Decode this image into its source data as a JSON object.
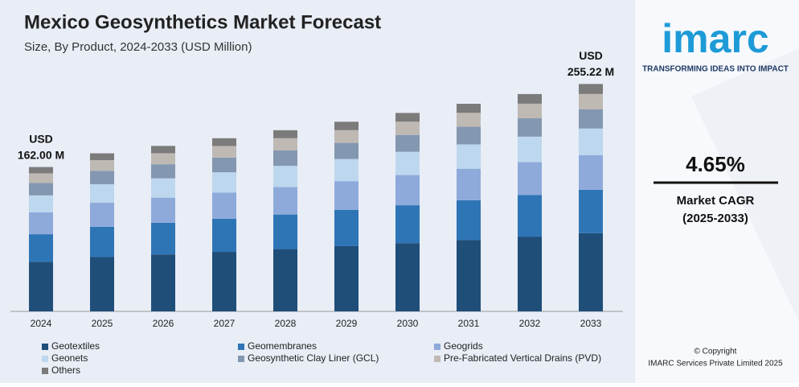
{
  "chart_data": {
    "type": "stacked_bar",
    "title": "Mexico Geosynthetics Market Forecast",
    "subtitle": "Size, By Product, 2024-2033 (USD Million)",
    "categories": [
      "2024",
      "2025",
      "2026",
      "2027",
      "2028",
      "2029",
      "2030",
      "2031",
      "2032",
      "2033"
    ],
    "series": [
      {
        "name": "Geotextiles",
        "color": "#1f4e79",
        "values": [
          55.7,
          61.0,
          63.9,
          66.8,
          69.9,
          73.2,
          76.6,
          80.2,
          83.9,
          87.8
        ]
      },
      {
        "name": "Geomembranes",
        "color": "#2e75b6",
        "values": [
          30.9,
          33.9,
          35.5,
          37.1,
          38.8,
          40.6,
          42.5,
          44.5,
          46.6,
          48.7
        ]
      },
      {
        "name": "Geogrids",
        "color": "#8eaadb",
        "values": [
          24.6,
          27.0,
          28.2,
          29.5,
          30.9,
          32.3,
          33.9,
          35.4,
          37.1,
          38.8
        ]
      },
      {
        "name": "Geonets",
        "color": "#bdd7ee",
        "values": [
          19.0,
          20.8,
          21.7,
          22.7,
          23.8,
          24.9,
          26.1,
          27.3,
          28.5,
          29.9
        ]
      },
      {
        "name": "Geosynthetic Clay Liner (GCL)",
        "color": "#8497b0",
        "values": [
          13.8,
          15.1,
          15.8,
          16.5,
          17.3,
          18.1,
          18.9,
          19.8,
          20.7,
          21.7
        ]
      },
      {
        "name": "Pre-Fabricated Vertical Drains (PVD)",
        "color": "#bfb9b4",
        "values": [
          10.9,
          11.9,
          12.4,
          13.0,
          13.6,
          14.3,
          14.9,
          15.6,
          16.3,
          17.1
        ]
      },
      {
        "name": "Others",
        "color": "#7b7b7b",
        "values": [
          7.1,
          7.7,
          8.2,
          8.7,
          9.0,
          9.4,
          9.8,
          10.2,
          10.8,
          11.22
        ]
      }
    ],
    "ylim": [
      0,
      270
    ],
    "start_label": [
      "USD",
      "162.00 M"
    ],
    "end_label": [
      "USD",
      "255.22 M"
    ]
  },
  "sidebar": {
    "logo": "imarc",
    "tagline": "TRANSFORMING IDEAS INTO IMPACT",
    "cagr": "4.65%",
    "cagr_label": "Market CAGR",
    "cagr_period": "(2025-2033)",
    "copyright": "© Copyright",
    "company": "IMARC Services Private Limited 2025"
  }
}
